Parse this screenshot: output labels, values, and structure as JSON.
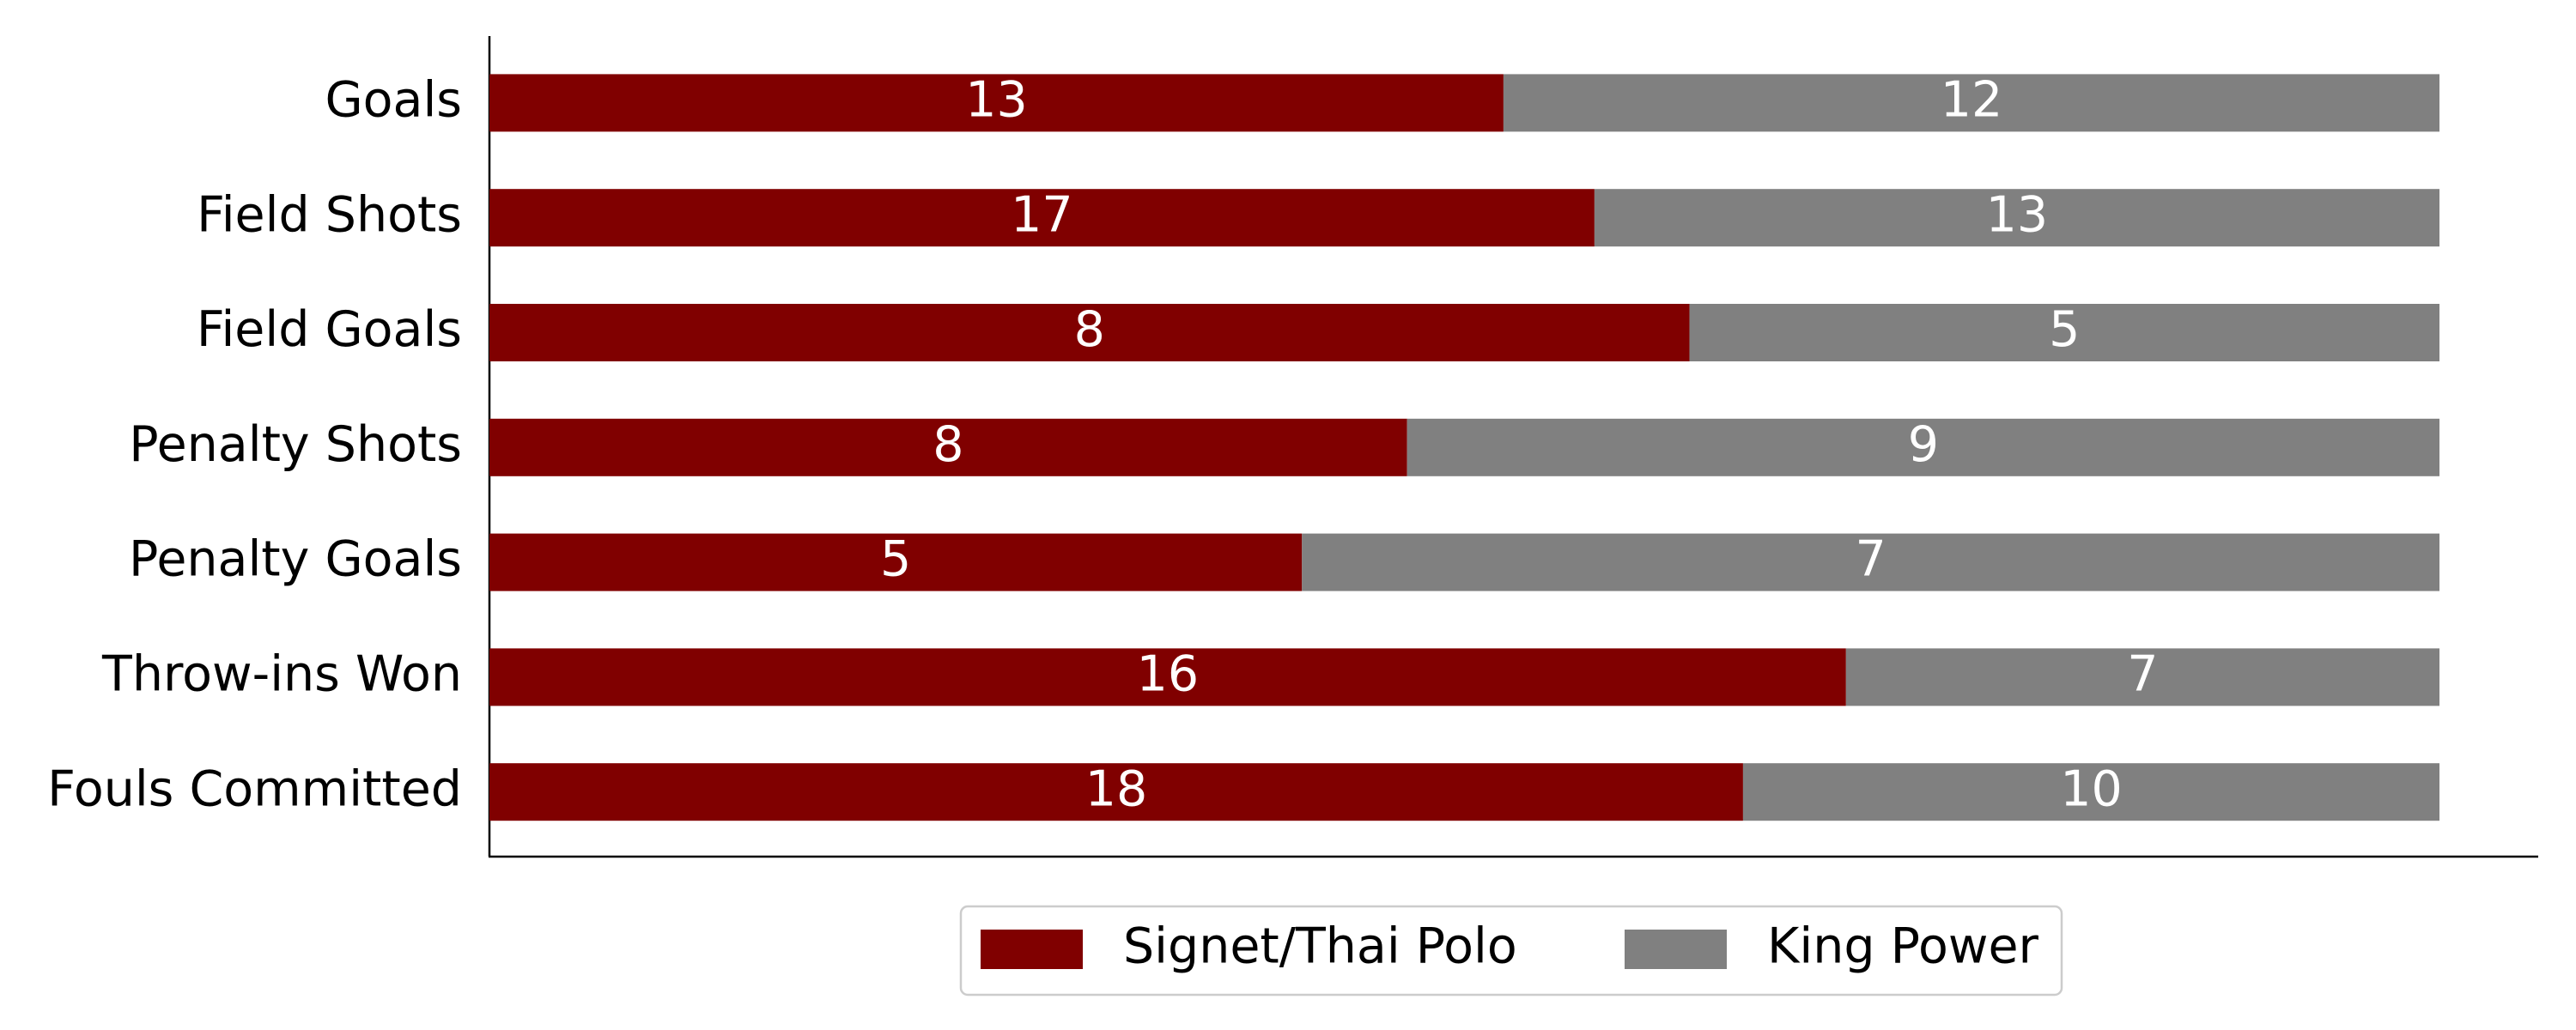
{
  "chart_data": {
    "type": "bar",
    "orientation": "horizontal",
    "stacked": "percent",
    "categories": [
      "Goals",
      "Field Shots",
      "Field Goals",
      "Penalty Shots",
      "Penalty Goals",
      "Throw-ins Won",
      "Fouls Committed"
    ],
    "series": [
      {
        "name": "Signet/Thai Polo",
        "color": "#800000",
        "values": [
          13,
          17,
          8,
          8,
          5,
          16,
          18
        ]
      },
      {
        "name": "King Power",
        "color": "#808080",
        "values": [
          12,
          13,
          5,
          9,
          7,
          7,
          10
        ]
      }
    ],
    "data_labels": true,
    "legend": "bottom"
  }
}
